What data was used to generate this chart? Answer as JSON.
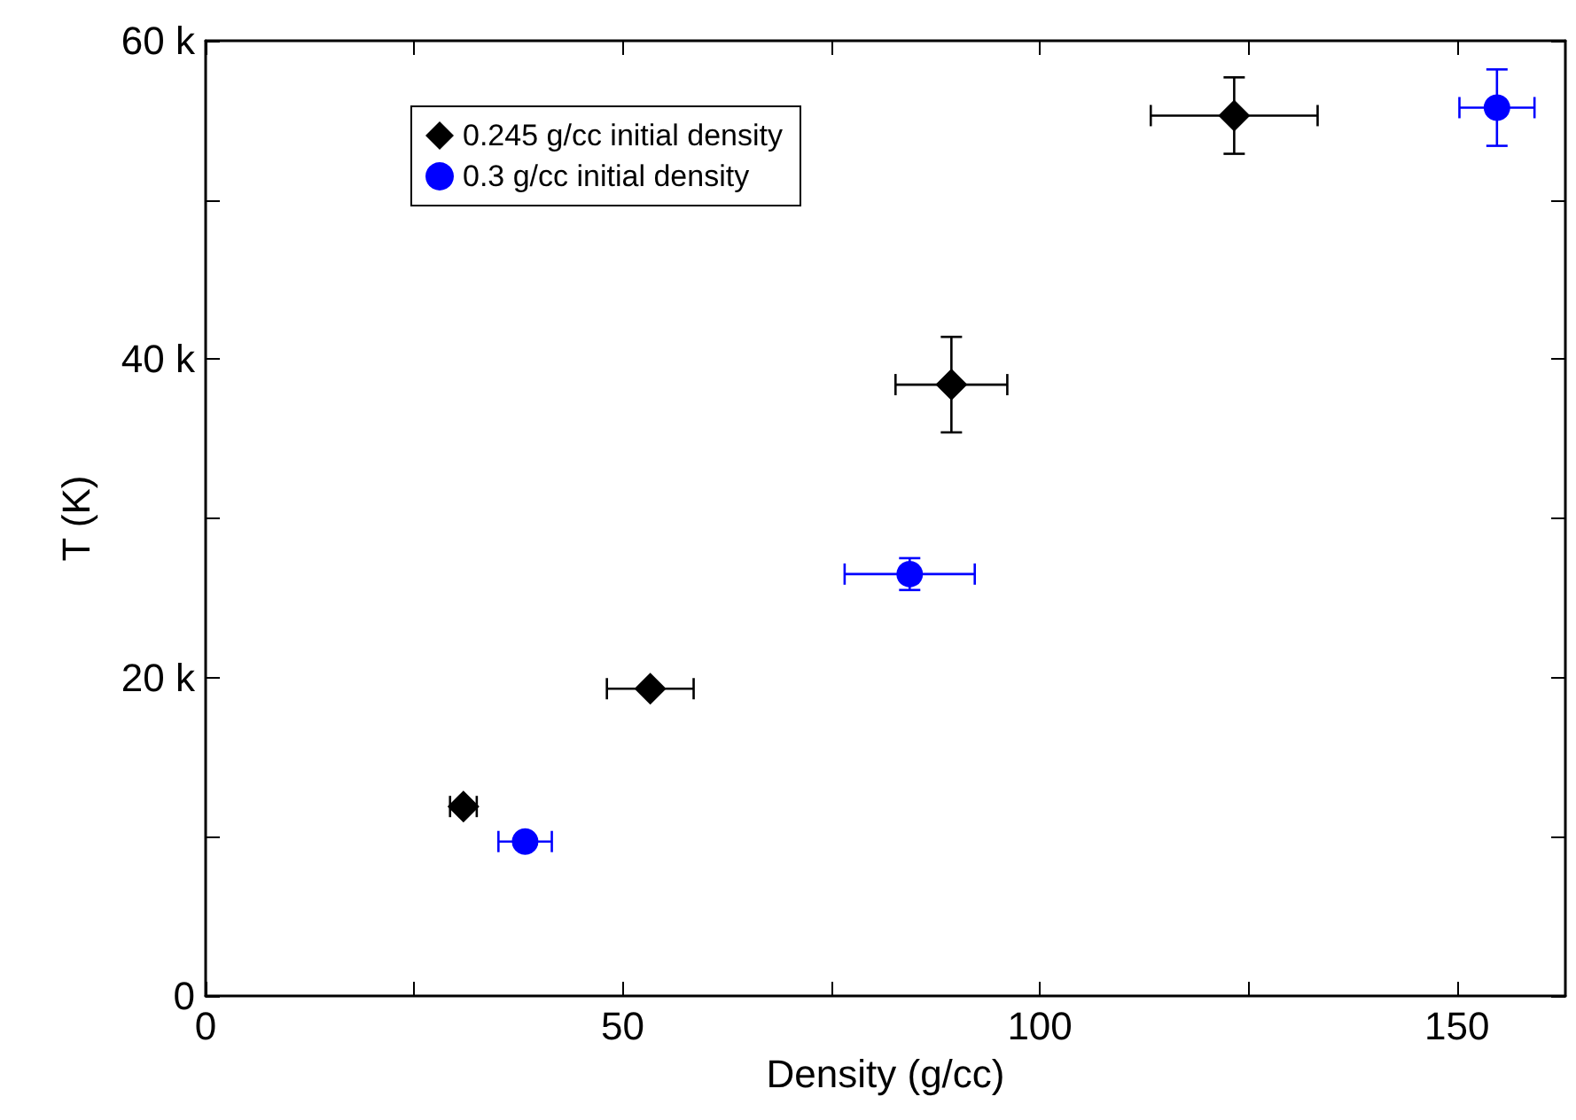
{
  "chart_data": {
    "type": "scatter",
    "xlabel": "Density (g/cc)",
    "ylabel": "T (K)",
    "xlim": [
      0,
      163
    ],
    "ylim": [
      0,
      60000
    ],
    "xticks": [
      0,
      50,
      100,
      150,
      {
        "value": 25,
        "label": null
      },
      {
        "value": 75,
        "label": null
      },
      {
        "value": 125,
        "label": null
      }
    ],
    "yticks": [
      0,
      {
        "value": 20000,
        "label": "20 k"
      },
      {
        "value": 40000,
        "label": "40 k"
      },
      {
        "value": 60000,
        "label": "60 k"
      },
      {
        "value": 10000,
        "label": null
      },
      {
        "value": 30000,
        "label": null
      },
      {
        "value": 50000,
        "label": null
      }
    ],
    "grid": false,
    "legend": "top left",
    "series": [
      {
        "name": "0.245 g/cc initial density",
        "color": "#000000",
        "marker": "diamond",
        "x": [
          30.9,
          53.3,
          89.4,
          123.3
        ],
        "values": [
          11900,
          19300,
          38400,
          55300
        ],
        "xerrors": [
          1.6,
          5.2,
          6.7,
          10
        ],
        "errors": [
          null,
          null,
          3000,
          2400
        ]
      },
      {
        "name": "0.3 g/cc initial density",
        "color": "#0000ff",
        "marker": "circle",
        "x": [
          38.3,
          84.4,
          154.8
        ],
        "values": [
          9700,
          26500,
          55800
        ],
        "xerrors": [
          3.2,
          7.8,
          4.5
        ],
        "errors": [
          null,
          1000,
          2400
        ]
      }
    ]
  }
}
